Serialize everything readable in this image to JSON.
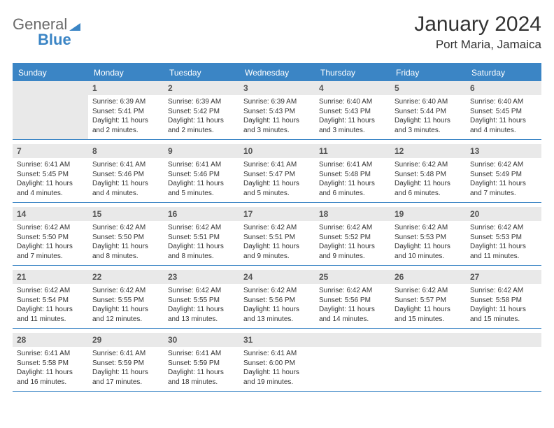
{
  "logo": {
    "text_a": "General",
    "text_b": "Blue",
    "triangle_color": "#3b85c5"
  },
  "title": {
    "month": "January 2024",
    "location": "Port Maria, Jamaica"
  },
  "daynames": [
    "Sunday",
    "Monday",
    "Tuesday",
    "Wednesday",
    "Thursday",
    "Friday",
    "Saturday"
  ],
  "colors": {
    "header_bg": "#3b85c5",
    "header_text": "#ffffff",
    "daynum_bg": "#e9e9e9",
    "border": "#3b85c5",
    "body_text": "#333333"
  },
  "layout": {
    "columns": 7,
    "first_weekday_offset": 1
  },
  "days": [
    {
      "n": 1,
      "sunrise": "Sunrise: 6:39 AM",
      "sunset": "Sunset: 5:41 PM",
      "daylight1": "Daylight: 11 hours",
      "daylight2": "and 2 minutes."
    },
    {
      "n": 2,
      "sunrise": "Sunrise: 6:39 AM",
      "sunset": "Sunset: 5:42 PM",
      "daylight1": "Daylight: 11 hours",
      "daylight2": "and 2 minutes."
    },
    {
      "n": 3,
      "sunrise": "Sunrise: 6:39 AM",
      "sunset": "Sunset: 5:43 PM",
      "daylight1": "Daylight: 11 hours",
      "daylight2": "and 3 minutes."
    },
    {
      "n": 4,
      "sunrise": "Sunrise: 6:40 AM",
      "sunset": "Sunset: 5:43 PM",
      "daylight1": "Daylight: 11 hours",
      "daylight2": "and 3 minutes."
    },
    {
      "n": 5,
      "sunrise": "Sunrise: 6:40 AM",
      "sunset": "Sunset: 5:44 PM",
      "daylight1": "Daylight: 11 hours",
      "daylight2": "and 3 minutes."
    },
    {
      "n": 6,
      "sunrise": "Sunrise: 6:40 AM",
      "sunset": "Sunset: 5:45 PM",
      "daylight1": "Daylight: 11 hours",
      "daylight2": "and 4 minutes."
    },
    {
      "n": 7,
      "sunrise": "Sunrise: 6:41 AM",
      "sunset": "Sunset: 5:45 PM",
      "daylight1": "Daylight: 11 hours",
      "daylight2": "and 4 minutes."
    },
    {
      "n": 8,
      "sunrise": "Sunrise: 6:41 AM",
      "sunset": "Sunset: 5:46 PM",
      "daylight1": "Daylight: 11 hours",
      "daylight2": "and 4 minutes."
    },
    {
      "n": 9,
      "sunrise": "Sunrise: 6:41 AM",
      "sunset": "Sunset: 5:46 PM",
      "daylight1": "Daylight: 11 hours",
      "daylight2": "and 5 minutes."
    },
    {
      "n": 10,
      "sunrise": "Sunrise: 6:41 AM",
      "sunset": "Sunset: 5:47 PM",
      "daylight1": "Daylight: 11 hours",
      "daylight2": "and 5 minutes."
    },
    {
      "n": 11,
      "sunrise": "Sunrise: 6:41 AM",
      "sunset": "Sunset: 5:48 PM",
      "daylight1": "Daylight: 11 hours",
      "daylight2": "and 6 minutes."
    },
    {
      "n": 12,
      "sunrise": "Sunrise: 6:42 AM",
      "sunset": "Sunset: 5:48 PM",
      "daylight1": "Daylight: 11 hours",
      "daylight2": "and 6 minutes."
    },
    {
      "n": 13,
      "sunrise": "Sunrise: 6:42 AM",
      "sunset": "Sunset: 5:49 PM",
      "daylight1": "Daylight: 11 hours",
      "daylight2": "and 7 minutes."
    },
    {
      "n": 14,
      "sunrise": "Sunrise: 6:42 AM",
      "sunset": "Sunset: 5:50 PM",
      "daylight1": "Daylight: 11 hours",
      "daylight2": "and 7 minutes."
    },
    {
      "n": 15,
      "sunrise": "Sunrise: 6:42 AM",
      "sunset": "Sunset: 5:50 PM",
      "daylight1": "Daylight: 11 hours",
      "daylight2": "and 8 minutes."
    },
    {
      "n": 16,
      "sunrise": "Sunrise: 6:42 AM",
      "sunset": "Sunset: 5:51 PM",
      "daylight1": "Daylight: 11 hours",
      "daylight2": "and 8 minutes."
    },
    {
      "n": 17,
      "sunrise": "Sunrise: 6:42 AM",
      "sunset": "Sunset: 5:51 PM",
      "daylight1": "Daylight: 11 hours",
      "daylight2": "and 9 minutes."
    },
    {
      "n": 18,
      "sunrise": "Sunrise: 6:42 AM",
      "sunset": "Sunset: 5:52 PM",
      "daylight1": "Daylight: 11 hours",
      "daylight2": "and 9 minutes."
    },
    {
      "n": 19,
      "sunrise": "Sunrise: 6:42 AM",
      "sunset": "Sunset: 5:53 PM",
      "daylight1": "Daylight: 11 hours",
      "daylight2": "and 10 minutes."
    },
    {
      "n": 20,
      "sunrise": "Sunrise: 6:42 AM",
      "sunset": "Sunset: 5:53 PM",
      "daylight1": "Daylight: 11 hours",
      "daylight2": "and 11 minutes."
    },
    {
      "n": 21,
      "sunrise": "Sunrise: 6:42 AM",
      "sunset": "Sunset: 5:54 PM",
      "daylight1": "Daylight: 11 hours",
      "daylight2": "and 11 minutes."
    },
    {
      "n": 22,
      "sunrise": "Sunrise: 6:42 AM",
      "sunset": "Sunset: 5:55 PM",
      "daylight1": "Daylight: 11 hours",
      "daylight2": "and 12 minutes."
    },
    {
      "n": 23,
      "sunrise": "Sunrise: 6:42 AM",
      "sunset": "Sunset: 5:55 PM",
      "daylight1": "Daylight: 11 hours",
      "daylight2": "and 13 minutes."
    },
    {
      "n": 24,
      "sunrise": "Sunrise: 6:42 AM",
      "sunset": "Sunset: 5:56 PM",
      "daylight1": "Daylight: 11 hours",
      "daylight2": "and 13 minutes."
    },
    {
      "n": 25,
      "sunrise": "Sunrise: 6:42 AM",
      "sunset": "Sunset: 5:56 PM",
      "daylight1": "Daylight: 11 hours",
      "daylight2": "and 14 minutes."
    },
    {
      "n": 26,
      "sunrise": "Sunrise: 6:42 AM",
      "sunset": "Sunset: 5:57 PM",
      "daylight1": "Daylight: 11 hours",
      "daylight2": "and 15 minutes."
    },
    {
      "n": 27,
      "sunrise": "Sunrise: 6:42 AM",
      "sunset": "Sunset: 5:58 PM",
      "daylight1": "Daylight: 11 hours",
      "daylight2": "and 15 minutes."
    },
    {
      "n": 28,
      "sunrise": "Sunrise: 6:41 AM",
      "sunset": "Sunset: 5:58 PM",
      "daylight1": "Daylight: 11 hours",
      "daylight2": "and 16 minutes."
    },
    {
      "n": 29,
      "sunrise": "Sunrise: 6:41 AM",
      "sunset": "Sunset: 5:59 PM",
      "daylight1": "Daylight: 11 hours",
      "daylight2": "and 17 minutes."
    },
    {
      "n": 30,
      "sunrise": "Sunrise: 6:41 AM",
      "sunset": "Sunset: 5:59 PM",
      "daylight1": "Daylight: 11 hours",
      "daylight2": "and 18 minutes."
    },
    {
      "n": 31,
      "sunrise": "Sunrise: 6:41 AM",
      "sunset": "Sunset: 6:00 PM",
      "daylight1": "Daylight: 11 hours",
      "daylight2": "and 19 minutes."
    }
  ]
}
